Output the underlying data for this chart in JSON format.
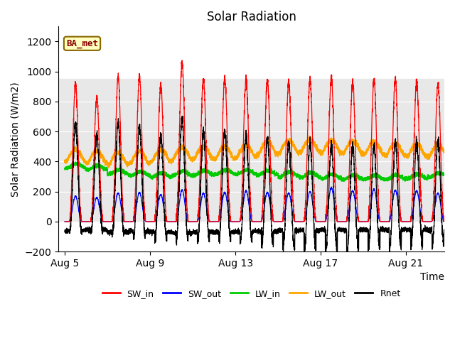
{
  "title": "Solar Radiation",
  "xlabel": "Time",
  "ylabel": "Solar Radiation (W/m2)",
  "ylim": [
    -200,
    1300
  ],
  "yticks": [
    -200,
    0,
    200,
    400,
    600,
    800,
    1000,
    1200
  ],
  "xtick_positions": [
    0,
    4,
    8,
    12,
    16
  ],
  "xtick_labels": [
    "Aug 5",
    "Aug 9",
    "Aug 13",
    "Aug 17",
    "Aug 21"
  ],
  "xlim_start": -0.3,
  "xlim_end": 17.8,
  "legend_labels": [
    "SW_in",
    "SW_out",
    "LW_in",
    "LW_out",
    "Rnet"
  ],
  "legend_colors": [
    "#ff0000",
    "#0000ff",
    "#00cc00",
    "#ffa500",
    "#000000"
  ],
  "box_label": "BA_met",
  "box_color": "#ffffc0",
  "box_edge_color": "#886600",
  "n_days": 18,
  "sw_in_peaks": [
    920,
    830,
    960,
    965,
    910,
    1060,
    950,
    955,
    950,
    940,
    930,
    950,
    960,
    935,
    945,
    950,
    935,
    920
  ],
  "sw_out_peaks": [
    170,
    160,
    190,
    195,
    180,
    210,
    190,
    195,
    205,
    195,
    190,
    200,
    225,
    205,
    215,
    210,
    205,
    190
  ],
  "lw_in_base": [
    370,
    360,
    330,
    320,
    310,
    320,
    325,
    330,
    330,
    325,
    315,
    310,
    300,
    295,
    295,
    295,
    300,
    310
  ],
  "lw_out_base": [
    400,
    390,
    380,
    390,
    400,
    415,
    420,
    420,
    430,
    450,
    460,
    465,
    460,
    455,
    450,
    440,
    435,
    430
  ],
  "night_rnet": [
    -60,
    -55,
    -70,
    -65,
    -70,
    -75,
    -70,
    -70,
    -65,
    -65,
    -60,
    -60,
    -55,
    -55,
    -55,
    -55,
    -55,
    -55
  ]
}
